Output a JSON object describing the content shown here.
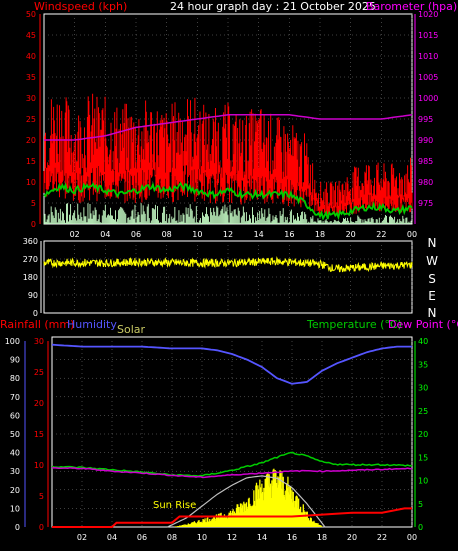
{
  "colors": {
    "background": "#000000",
    "frame": "#ffffff",
    "grid": "#808080",
    "wind_axis": "#ff0000",
    "baro_axis": "#ff00ff",
    "wind_speed": "#ff0000",
    "wind_avg": "#00cc00",
    "wind_calm": "#c8ffc8",
    "baro_line": "#cc00cc",
    "direction": "#ffff00",
    "rain": "#ff0000",
    "rain_axis": "#ff0000",
    "humidity": "#5555ff",
    "solar_label": "#c8c864",
    "temperature": "#00cc00",
    "dewpoint": "#cc00cc",
    "dewpoint_label": "#ff00ff",
    "temp_axis": "#00ff00",
    "solar_fill": "#ffff00",
    "sun_curve": "#c0c0c0",
    "sunrise_label": "#ffff00",
    "tick_label": "#ffffff",
    "compass": "#ffffff"
  },
  "chart_data": [
    {
      "type": "line",
      "title": "24 hour graph day : 21 October 2025",
      "left_axis_label": "Windspeed (kph)",
      "right_axis_label": "Barometer (hpa)",
      "x_tick_labels": [
        "02",
        "04",
        "06",
        "08",
        "10",
        "12",
        "14",
        "16",
        "18",
        "20",
        "22",
        "00"
      ],
      "y_left_ticks": [
        0,
        5,
        10,
        15,
        20,
        25,
        30,
        35,
        40,
        45,
        50
      ],
      "y_left_range": [
        0,
        50
      ],
      "y_right_ticks": [
        975,
        980,
        985,
        990,
        995,
        1000,
        1005,
        1010,
        1015,
        1020
      ],
      "y_right_range": [
        970,
        1020
      ],
      "grid": true,
      "series": [
        {
          "role": "gust",
          "x_hours": [
            0,
            1,
            2,
            3,
            4,
            5,
            6,
            7,
            8,
            9,
            10,
            11,
            12,
            13,
            14,
            15,
            16,
            17,
            18,
            19,
            20,
            21,
            22,
            23,
            24
          ],
          "values": [
            21,
            23,
            19,
            22,
            21,
            20,
            20,
            21,
            19,
            22,
            21,
            19,
            20,
            18,
            20,
            18,
            17,
            15,
            7,
            7,
            9,
            11,
            10,
            10,
            11
          ]
        },
        {
          "role": "average",
          "x_hours": [
            0,
            1,
            2,
            3,
            4,
            5,
            6,
            7,
            8,
            9,
            10,
            11,
            12,
            13,
            14,
            15,
            16,
            17,
            18,
            19,
            20,
            21,
            22,
            23,
            24
          ],
          "values": [
            7,
            9,
            8,
            9,
            8,
            7,
            8,
            9,
            8,
            9,
            8,
            7,
            8,
            7,
            7,
            7,
            7,
            5,
            2,
            2,
            3,
            4,
            4,
            3,
            4
          ]
        },
        {
          "role": "barometer",
          "x_hours": [
            0,
            2,
            4,
            6,
            8,
            10,
            12,
            13,
            14,
            16,
            18,
            20,
            22,
            24
          ],
          "values": [
            990,
            990,
            991,
            993,
            994,
            995,
            996,
            996,
            996,
            996,
            995,
            995,
            995,
            996
          ]
        }
      ]
    },
    {
      "type": "scatter",
      "y_ticks": [
        0,
        90,
        180,
        270,
        360
      ],
      "y_range": [
        0,
        360
      ],
      "compass_labels": [
        "N",
        "W",
        "S",
        "E",
        "N"
      ],
      "series": [
        {
          "role": "wind_direction",
          "x_hours": [
            0,
            2,
            4,
            6,
            8,
            10,
            12,
            14,
            15,
            16,
            18,
            19,
            20,
            22,
            24
          ],
          "values": [
            250,
            252,
            250,
            255,
            252,
            250,
            250,
            255,
            258,
            255,
            245,
            220,
            225,
            235,
            240
          ]
        }
      ]
    },
    {
      "type": "line",
      "left_labels": [
        "Rainfall (mm)",
        "Humidity"
      ],
      "solar_label": "Solar",
      "right_labels": [
        "Temperature (°C)",
        "Dew Point (°C)"
      ],
      "sunrise_label": "Sun Rise",
      "x_tick_labels": [
        "02",
        "04",
        "06",
        "08",
        "10",
        "12",
        "14",
        "16",
        "18",
        "20",
        "22",
        "00"
      ],
      "humidity_ticks": [
        0,
        10,
        20,
        30,
        40,
        50,
        60,
        70,
        80,
        90,
        100
      ],
      "humidity_range": [
        0,
        100
      ],
      "rain_ticks": [
        0,
        5,
        10,
        15,
        20,
        25,
        30
      ],
      "rain_range": [
        0,
        30
      ],
      "temp_ticks": [
        0,
        5,
        10,
        15,
        20,
        25,
        30,
        35,
        40
      ],
      "temp_range": [
        0,
        40
      ],
      "grid": true,
      "series": [
        {
          "role": "humidity",
          "x_hours": [
            0,
            2,
            4,
            6,
            8,
            9,
            10,
            11,
            12,
            13,
            14,
            15,
            16,
            17,
            18,
            19,
            20,
            21,
            22,
            23,
            24
          ],
          "values": [
            98,
            97,
            97,
            97,
            96,
            96,
            96,
            95,
            93,
            90,
            86,
            80,
            77,
            78,
            84,
            88,
            91,
            94,
            96,
            97,
            97
          ]
        },
        {
          "role": "rainfall",
          "x_hours": [
            0,
            4,
            4.3,
            8,
            8.5,
            16,
            20,
            22,
            23.5,
            24
          ],
          "values": [
            0,
            0,
            0.7,
            0.7,
            1.7,
            1.7,
            2.3,
            2.3,
            3,
            3
          ]
        },
        {
          "role": "temperature",
          "x_hours": [
            0,
            2,
            4,
            6,
            8,
            10,
            12,
            14,
            15,
            16,
            17,
            18,
            19,
            20,
            22,
            24
          ],
          "values": [
            13,
            12.8,
            12.3,
            11.8,
            11.2,
            11,
            12.2,
            13.8,
            15,
            16,
            15.2,
            14,
            13.5,
            13.4,
            13.4,
            13.2
          ]
        },
        {
          "role": "dewpoint",
          "x_hours": [
            0,
            2,
            4,
            6,
            8,
            10,
            12,
            14,
            16,
            17,
            18,
            20,
            22,
            24
          ],
          "values": [
            12.7,
            12.6,
            12.0,
            11.6,
            11.1,
            10.7,
            11.2,
            11.6,
            12.0,
            12.1,
            12.0,
            12.2,
            12.4,
            12.6
          ]
        },
        {
          "role": "solar",
          "x_hours": [
            8.2,
            9,
            10,
            11,
            12,
            13,
            14,
            14.5,
            15,
            15.5,
            16,
            16.5,
            17,
            17.5,
            18
          ],
          "values": [
            0.1,
            0.6,
            1.6,
            2.4,
            3.5,
            6,
            10,
            11,
            12,
            10.6,
            8,
            6,
            3,
            1.2,
            0.2
          ]
        },
        {
          "role": "sun_curve",
          "x_hours": [
            7.7,
            9,
            10,
            11,
            12,
            13,
            14,
            15,
            16,
            17,
            18.2
          ],
          "values": [
            0,
            2,
            4.5,
            7,
            9,
            10.6,
            11,
            10.5,
            8.5,
            5,
            0
          ]
        }
      ]
    }
  ]
}
